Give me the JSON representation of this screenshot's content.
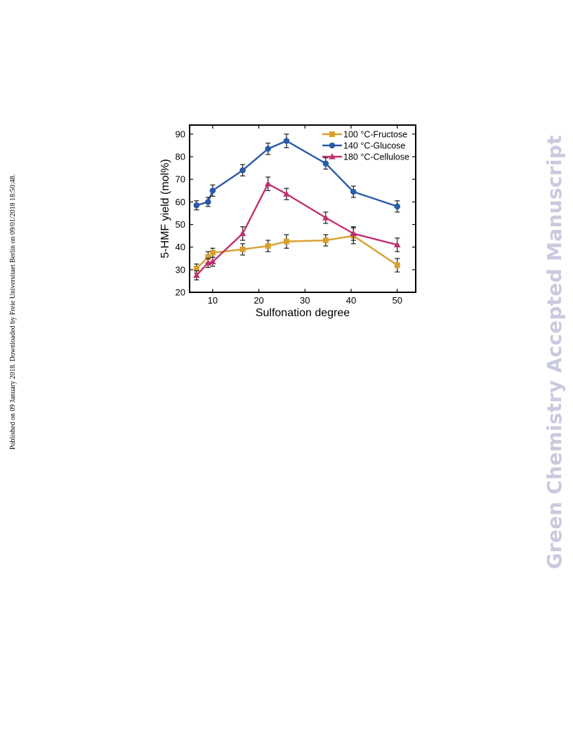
{
  "page": {
    "side_note": "Published on 09 January 2018. Downloaded by Freie Universitaet Berlin on 09/01/2018 18:50:48.",
    "watermark": "Green Chemistry Accepted Manuscript"
  },
  "chart_data": {
    "type": "line",
    "title": "",
    "xlabel": "Sulfonation degree",
    "ylabel": "5-HMF yield (mol%)",
    "xlim": [
      5,
      54
    ],
    "ylim": [
      20,
      94
    ],
    "xticks": [
      10,
      20,
      30,
      40,
      50
    ],
    "yticks": [
      20,
      30,
      40,
      50,
      60,
      70,
      80,
      90
    ],
    "grid": false,
    "legend_position": "top-right",
    "series": [
      {
        "name": "100 °C-Fructose",
        "color": "#d9a030",
        "marker": "square",
        "x": [
          6.5,
          9,
          10,
          16.5,
          22,
          26,
          34.5,
          40.5,
          50
        ],
        "y": [
          30.5,
          35.5,
          37.5,
          39,
          40.5,
          42.5,
          43,
          45,
          32
        ],
        "err": [
          2,
          2.5,
          2,
          2.5,
          2.5,
          3,
          2.5,
          3.5,
          3
        ]
      },
      {
        "name": "140 °C-Glucose",
        "color": "#2a5aa8",
        "marker": "circle",
        "x": [
          6.5,
          9,
          10,
          16.5,
          22,
          26,
          34.5,
          40.5,
          50
        ],
        "y": [
          58.5,
          60,
          65,
          74,
          83.5,
          87,
          77,
          64.5,
          58
        ],
        "err": [
          2,
          2,
          2.5,
          2.5,
          2.5,
          3,
          2.5,
          2.5,
          2.5
        ]
      },
      {
        "name": "180 °C-Cellulose",
        "color": "#c03070",
        "marker": "triangle",
        "x": [
          6.5,
          9,
          10,
          16.5,
          22,
          26,
          34.5,
          40.5,
          50
        ],
        "y": [
          27.5,
          33,
          33.5,
          46,
          68,
          63.5,
          53,
          46,
          41
        ],
        "err": [
          2,
          2,
          2,
          3,
          3,
          2.5,
          2.5,
          3,
          3
        ]
      }
    ]
  }
}
